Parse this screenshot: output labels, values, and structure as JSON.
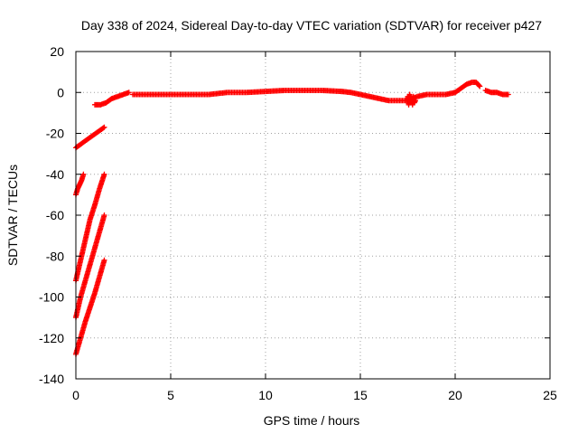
{
  "chart_data": {
    "type": "scatter",
    "title": "Day 338 of 2024, Sidereal Day-to-day VTEC variation (SDTVAR) for receiver p427",
    "xlabel": "GPS time / hours",
    "ylabel": "SDTVAR / TECUs",
    "xlim": [
      0,
      25
    ],
    "ylim": [
      -140,
      20
    ],
    "xticks": [
      "0",
      "5",
      "10",
      "15",
      "20",
      "25"
    ],
    "yticks": [
      "20",
      "0",
      "-20",
      "-40",
      "-60",
      "-80",
      "-100",
      "-120",
      "-140"
    ],
    "grid": true,
    "legend": "none",
    "marker": "plus",
    "series": [
      {
        "name": "SDTVAR",
        "color": "#ff0000",
        "segments": [
          {
            "x": [
              0.0,
              0.3,
              0.6,
              0.9,
              1.2,
              1.5
            ],
            "y": [
              -27,
              -25,
              -23,
              -21,
              -19,
              -17
            ]
          },
          {
            "x": [
              0.0,
              0.1,
              0.2,
              0.3,
              0.4
            ],
            "y": [
              -50,
              -47,
              -45,
              -43,
              -40
            ]
          },
          {
            "x": [
              0.0,
              0.25,
              0.5,
              0.75,
              1.0,
              1.25,
              1.5
            ],
            "y": [
              -92,
              -82,
              -72,
              -62,
              -55,
              -47,
              -40
            ]
          },
          {
            "x": [
              0.0,
              0.25,
              0.5,
              0.75,
              1.0,
              1.25,
              1.5
            ],
            "y": [
              -110,
              -100,
              -92,
              -84,
              -76,
              -68,
              -60
            ]
          },
          {
            "x": [
              0.0,
              0.25,
              0.5,
              0.75,
              1.0,
              1.25,
              1.5
            ],
            "y": [
              -128,
              -120,
              -112,
              -105,
              -98,
              -90,
              -82
            ]
          },
          {
            "x": [
              1.0,
              1.3,
              1.6,
              1.9,
              2.2,
              2.5,
              2.8
            ],
            "y": [
              -6,
              -6,
              -5,
              -3,
              -2,
              -1,
              0
            ]
          },
          {
            "x": [
              3.0,
              4.0,
              5.0,
              6.0,
              7.0,
              8.0,
              9.0,
              10.0,
              11.0,
              12.0,
              13.0,
              14.0
            ],
            "y": [
              -1,
              -1,
              -1,
              -1,
              -1,
              0,
              0,
              0.5,
              1,
              1,
              1,
              0.5
            ]
          },
          {
            "x": [
              14.0,
              14.5,
              15.0,
              15.5,
              16.0,
              16.5,
              17.0,
              17.5,
              18.0,
              18.5,
              19.0,
              19.5,
              20.0
            ],
            "y": [
              0.5,
              0,
              -1,
              -2,
              -3,
              -4,
              -4,
              -4,
              -2,
              -1,
              -1,
              -1,
              0
            ]
          },
          {
            "x": [
              17.5,
              17.55,
              17.6,
              17.65,
              17.7,
              17.75,
              17.8,
              17.85,
              17.9
            ],
            "y": [
              -2,
              -6,
              -1,
              -5,
              -3,
              -6,
              -2,
              -5,
              -4
            ]
          },
          {
            "x": [
              20.0,
              20.3,
              20.6,
              20.9,
              21.1,
              21.3
            ],
            "y": [
              0,
              2,
              4,
              5,
              5,
              3
            ]
          },
          {
            "x": [
              21.6,
              21.9,
              22.2,
              22.5,
              22.8
            ],
            "y": [
              1,
              0,
              0,
              -1,
              -1
            ]
          }
        ]
      }
    ]
  }
}
